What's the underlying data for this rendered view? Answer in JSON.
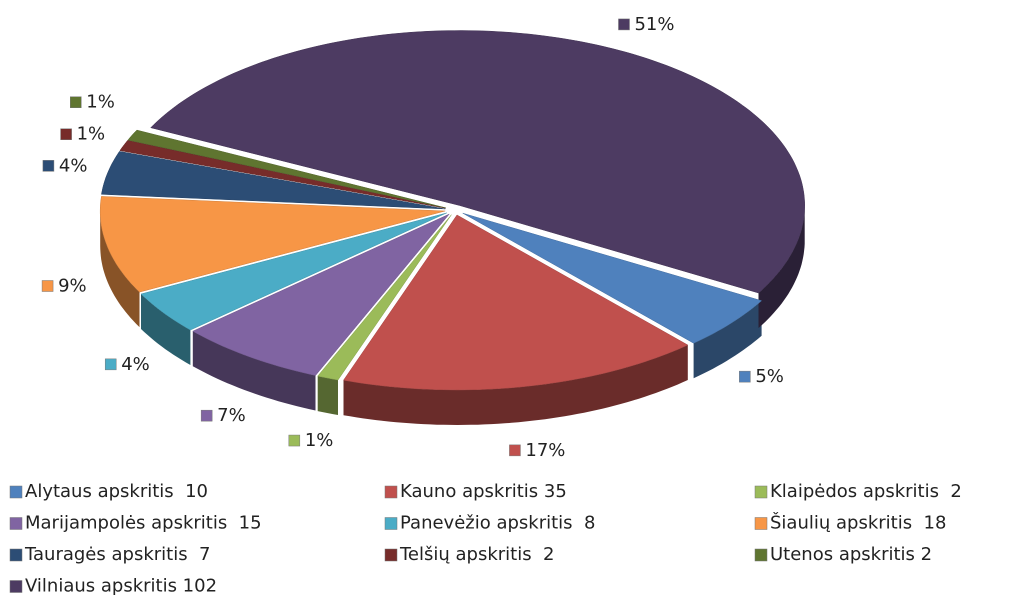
{
  "chart_data": {
    "type": "pie3d",
    "categories": [
      "Alytaus apskritis  10",
      "Kauno apskritis 35",
      "Klaipėdos apskritis  2",
      "Marijampolės apskritis  15",
      "Panevėžio apskritis  8",
      "Šiaulių apskritis  18",
      "Tauragės apskritis  7",
      "Telšių apskritis  2",
      "Utenos apskritis 2",
      "Vilniaus apskritis 102"
    ],
    "values": [
      5,
      17,
      1,
      7,
      4,
      9,
      4,
      1,
      1,
      51
    ],
    "value_labels": [
      "5%",
      "17%",
      "1%",
      "7%",
      "4%",
      "9%",
      "4%",
      "1%",
      "1%",
      "51%"
    ],
    "colors": [
      "#4f81bd",
      "#c0504d",
      "#9bbb59",
      "#8064a2",
      "#4bacc6",
      "#f79646",
      "#2c4d75",
      "#772c2a",
      "#5f7530",
      "#4d3b62"
    ],
    "legend": "bottom"
  }
}
